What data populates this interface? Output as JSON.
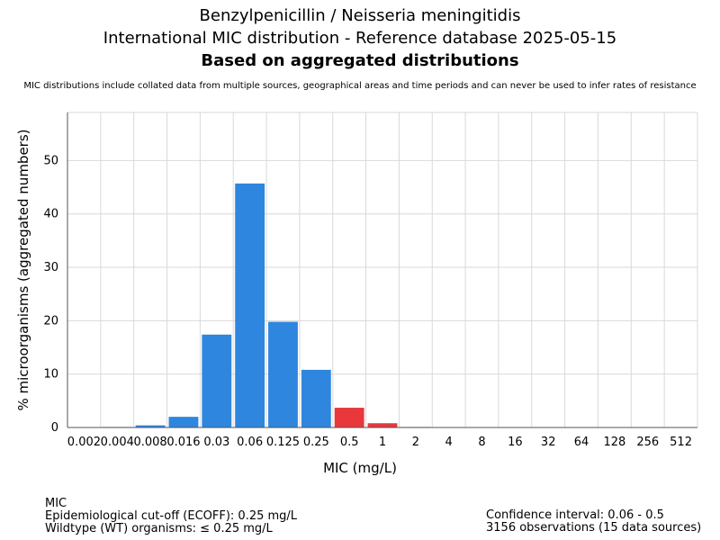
{
  "header": {
    "title_line1": "Benzylpenicillin / Neisseria meningitidis",
    "title_line2": "International MIC distribution - Reference database 2025-05-15",
    "title_line3": "Based on aggregated distributions",
    "disclaimer": "MIC distributions include collated data from multiple sources, geographical areas and time periods and can never be used to infer rates of resistance"
  },
  "footer": {
    "left_line1": "MIC",
    "left_line2": "Epidemiological cut-off (ECOFF): 0.25 mg/L",
    "left_line3": "Wildtype (WT) organisms: ≤ 0.25 mg/L",
    "right_line1": "Confidence interval: 0.06 - 0.5",
    "right_line2": "3156 observations (15 data sources)"
  },
  "colors": {
    "wildtype": "#2e86de",
    "non_wildtype": "#e8383b",
    "grid": "#d9d9d9"
  },
  "chart_data": {
    "type": "bar",
    "xlabel": "MIC (mg/L)",
    "ylabel": "% microorganisms (aggregated numbers)",
    "ylim": [
      0,
      59
    ],
    "yticks": [
      0,
      10,
      20,
      30,
      40,
      50
    ],
    "grid": true,
    "categories": [
      "0.002",
      "0.004",
      "0.008",
      "0.016",
      "0.03",
      "0.06",
      "0.125",
      "0.25",
      "0.5",
      "1",
      "2",
      "4",
      "8",
      "16",
      "32",
      "64",
      "128",
      "256",
      "512"
    ],
    "values": [
      0,
      0.1,
      0.4,
      2.0,
      17.4,
      45.7,
      19.8,
      10.8,
      3.7,
      0.8,
      0.1,
      0,
      0,
      0,
      0,
      0,
      0,
      0,
      0
    ],
    "wildtype": [
      true,
      true,
      true,
      true,
      true,
      true,
      true,
      true,
      false,
      false,
      false,
      false,
      false,
      false,
      false,
      false,
      false,
      false,
      false
    ]
  }
}
